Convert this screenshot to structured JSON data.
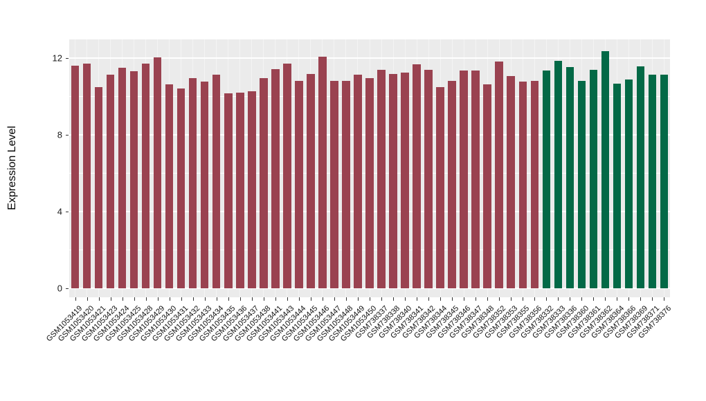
{
  "chart_data": {
    "type": "bar",
    "title": "",
    "xlabel": "",
    "ylabel": "Expression Level",
    "ylim": [
      0,
      12.97
    ],
    "yticks": [
      0,
      4,
      8,
      12
    ],
    "yticks_minor": [
      2,
      6,
      10
    ],
    "grid": true,
    "legend": "none",
    "panel_bg": "#EBEBEB",
    "categories": [
      "GSM1053419",
      "GSM1053420",
      "GSM1053421",
      "GSM1053423",
      "GSM1053424",
      "GSM1053425",
      "GSM1053428",
      "GSM1053429",
      "GSM1053430",
      "GSM1053431",
      "GSM1053432",
      "GSM1053433",
      "GSM1053434",
      "GSM1053435",
      "GSM1053436",
      "GSM1053437",
      "GSM1053438",
      "GSM1053441",
      "GSM1053443",
      "GSM1053444",
      "GSM1053445",
      "GSM1053446",
      "GSM1053447",
      "GSM1053448",
      "GSM1053449",
      "GSM1053450",
      "GSM738337",
      "GSM738338",
      "GSM738340",
      "GSM738341",
      "GSM738342",
      "GSM738344",
      "GSM738345",
      "GSM738346",
      "GSM738347",
      "GSM738348",
      "GSM738352",
      "GSM738353",
      "GSM738355",
      "GSM738356",
      "GSM738332",
      "GSM738333",
      "GSM738336",
      "GSM738360",
      "GSM738361",
      "GSM738362",
      "GSM738364",
      "GSM738366",
      "GSM738369",
      "GSM738371",
      "GSM738376"
    ],
    "values": [
      11.6,
      11.72,
      10.49,
      11.15,
      11.48,
      11.33,
      11.72,
      12.02,
      10.62,
      10.42,
      10.94,
      10.76,
      11.12,
      10.16,
      10.2,
      10.28,
      10.97,
      11.42,
      11.7,
      10.82,
      11.18,
      12.08,
      10.8,
      10.8,
      11.15,
      10.97,
      11.39,
      11.16,
      11.24,
      11.66,
      11.4,
      10.49,
      10.8,
      11.36,
      11.35,
      10.62,
      11.8,
      11.05,
      10.76,
      10.8,
      11.36,
      11.84,
      11.53,
      10.81,
      11.39,
      12.35,
      10.67,
      10.88,
      11.58,
      11.15,
      11.15
    ],
    "groups": [
      {
        "color": "#9A4250",
        "count": 40
      },
      {
        "color": "#036946",
        "count": 11
      }
    ]
  }
}
